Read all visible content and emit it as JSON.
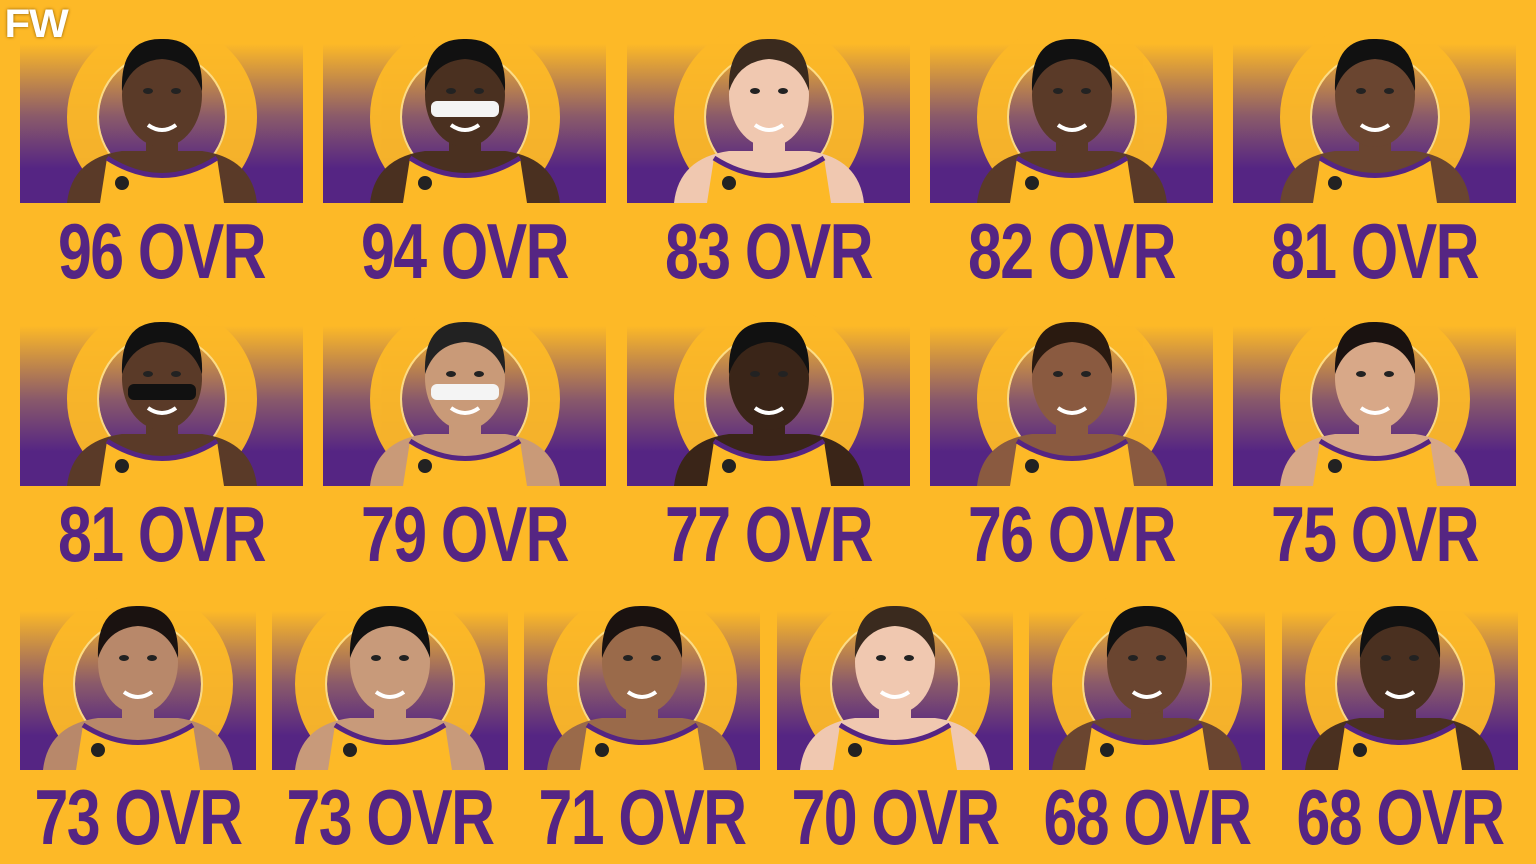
{
  "logo": "FW",
  "colors": {
    "background": "#FDB927",
    "purple": "#552583",
    "text": "#552583"
  },
  "rows": [
    [
      {
        "rating": "96 OVR",
        "skin": "#5a3a28",
        "hair": "#111"
      },
      {
        "rating": "94 OVR",
        "skin": "#4a3020",
        "hair": "#111",
        "headband": "white"
      },
      {
        "rating": "83 OVR",
        "skin": "#f0c8b0",
        "hair": "#3a2a1e"
      },
      {
        "rating": "82 OVR",
        "skin": "#5a3a28",
        "hair": "#111"
      },
      {
        "rating": "81 OVR",
        "skin": "#6a4530",
        "hair": "#111"
      }
    ],
    [
      {
        "rating": "81 OVR",
        "skin": "#5a3a28",
        "hair": "#111",
        "headband": "black"
      },
      {
        "rating": "79 OVR",
        "skin": "#c99a78",
        "hair": "#222",
        "headband": "white"
      },
      {
        "rating": "77 OVR",
        "skin": "#3a2518",
        "hair": "#111"
      },
      {
        "rating": "76 OVR",
        "skin": "#8a5a40",
        "hair": "#2a1a10"
      },
      {
        "rating": "75 OVR",
        "skin": "#d8a888",
        "hair": "#1a1210"
      }
    ],
    [
      {
        "rating": "73 OVR",
        "skin": "#b8886a",
        "hair": "#1a1210"
      },
      {
        "rating": "73 OVR",
        "skin": "#c89a7a",
        "hair": "#111"
      },
      {
        "rating": "71 OVR",
        "skin": "#9a6a4a",
        "hair": "#1a1210"
      },
      {
        "rating": "70 OVR",
        "skin": "#f0c8b0",
        "hair": "#3a2a1e"
      },
      {
        "rating": "68 OVR",
        "skin": "#6a4530",
        "hair": "#111"
      },
      {
        "rating": "68 OVR",
        "skin": "#4a3020",
        "hair": "#111"
      }
    ]
  ]
}
